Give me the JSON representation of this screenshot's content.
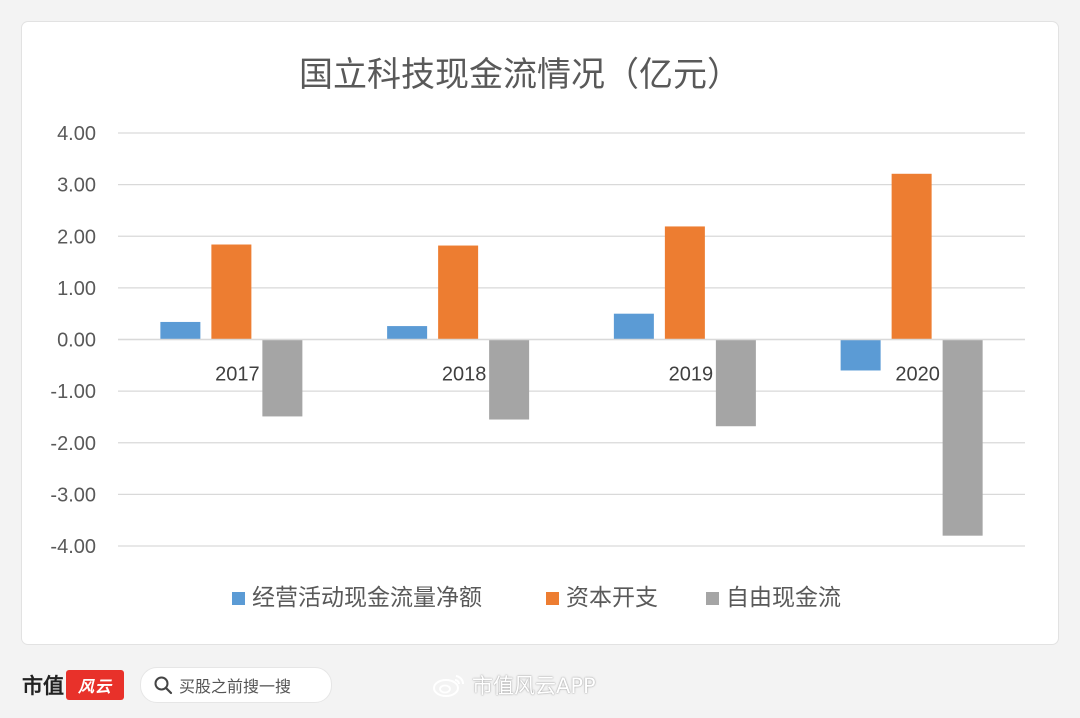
{
  "chart_data": {
    "type": "bar",
    "title": "国立科技现金流情况（亿元）",
    "categories": [
      "2017",
      "2018",
      "2019",
      "2020"
    ],
    "series": [
      {
        "name": "经营活动现金流量净额",
        "color": "#5b9bd5",
        "values": [
          0.34,
          0.26,
          0.5,
          -0.6
        ]
      },
      {
        "name": "资本开支",
        "color": "#ed7d31",
        "values": [
          1.84,
          1.82,
          2.19,
          3.21
        ]
      },
      {
        "name": "自由现金流",
        "color": "#a5a5a5",
        "values": [
          -1.49,
          -1.55,
          -1.68,
          -3.8
        ]
      }
    ],
    "y_ticks": [
      "4.00",
      "3.00",
      "2.00",
      "1.00",
      "0.00",
      "-1.00",
      "-2.00",
      "-3.00",
      "-4.00"
    ],
    "ylim": [
      -4,
      4
    ],
    "grid": true,
    "legend_position": "bottom"
  },
  "footer": {
    "brand_name": "市值",
    "brand_mark": "风云",
    "search_placeholder": "买股之前搜一搜",
    "source_label": "市值风云APP"
  },
  "icons": {
    "search": "search-icon",
    "weibo": "weibo-icon"
  }
}
